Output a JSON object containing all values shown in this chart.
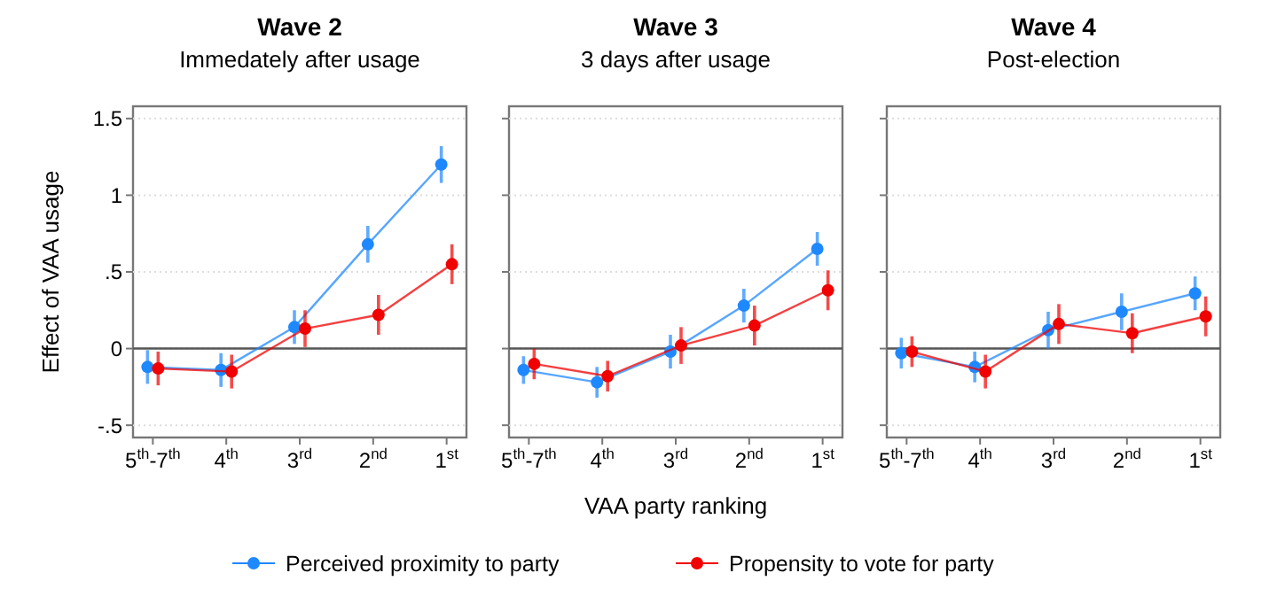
{
  "chart_data": [
    {
      "type": "line",
      "title": "Wave 2",
      "subtitle": "Immedately after usage",
      "ylabel": "Effect of VAA usage",
      "categories": [
        "5$^{th}$-7$^{th}$",
        "4$^{th}$",
        "3$^{rd}$",
        "2$^{nd}$",
        "1$^{st}$"
      ],
      "ylim": [
        -0.58,
        1.58
      ],
      "yticks": [
        {
          "value": -0.5,
          "label": "-.5"
        },
        0,
        {
          "value": 0.5,
          "label": ".5"
        },
        1,
        1.5
      ],
      "grid": "y",
      "marker": "circle",
      "ref_lines": [
        {
          "axis": "y",
          "value": 0
        }
      ],
      "series": [
        {
          "color": "#1e88ff",
          "values": [
            -0.12,
            -0.14,
            0.14,
            0.68,
            1.2
          ],
          "errors": [
            0.11,
            0.11,
            0.11,
            0.12,
            0.12
          ]
        },
        {
          "color": "#f00000",
          "values": [
            -0.13,
            -0.15,
            0.13,
            0.22,
            0.55
          ],
          "errors": [
            0.11,
            0.11,
            0.12,
            0.13,
            0.13
          ]
        }
      ]
    },
    {
      "type": "line",
      "title": "Wave 3",
      "subtitle": "3 days after usage",
      "xlabel": "VAA party ranking",
      "categories": [
        "5$^{th}$-7$^{th}$",
        "4$^{th}$",
        "3$^{rd}$",
        "2$^{nd}$",
        "1$^{st}$"
      ],
      "ylim": [
        -0.58,
        1.58
      ],
      "yticks": [
        -0.5,
        0,
        0.5,
        1,
        1.5
      ],
      "tick_labels": "x",
      "grid": "y",
      "marker": "circle",
      "legend": "bottom",
      "ref_lines": [
        {
          "axis": "y",
          "value": 0
        }
      ],
      "series": [
        {
          "name": "Perceived proximity to party",
          "color": "#1e88ff",
          "values": [
            -0.14,
            -0.22,
            -0.02,
            0.28,
            0.65
          ],
          "errors": [
            0.09,
            0.1,
            0.11,
            0.11,
            0.11
          ]
        },
        {
          "name": "Propensity to vote for party",
          "color": "#f00000",
          "values": [
            -0.1,
            -0.18,
            0.02,
            0.15,
            0.38
          ],
          "errors": [
            0.1,
            0.1,
            0.12,
            0.13,
            0.13
          ]
        }
      ]
    },
    {
      "type": "line",
      "title": "Wave 4",
      "subtitle": "Post-election",
      "categories": [
        "5$^{th}$-7$^{th}$",
        "4$^{th}$",
        "3$^{rd}$",
        "2$^{nd}$",
        "1$^{st}$"
      ],
      "ylim": [
        -0.58,
        1.58
      ],
      "yticks": [
        -0.5,
        0,
        0.5,
        1,
        1.5
      ],
      "tick_labels": "x",
      "grid": "y",
      "marker": "circle",
      "ref_lines": [
        {
          "axis": "y",
          "value": 0
        }
      ],
      "series": [
        {
          "color": "#1e88ff",
          "values": [
            -0.03,
            -0.12,
            0.12,
            0.24,
            0.36
          ],
          "errors": [
            0.1,
            0.1,
            0.12,
            0.12,
            0.11
          ]
        },
        {
          "color": "#f00000",
          "values": [
            -0.02,
            -0.15,
            0.16,
            0.1,
            0.21
          ],
          "errors": [
            0.1,
            0.11,
            0.13,
            0.13,
            0.13
          ]
        }
      ]
    }
  ]
}
